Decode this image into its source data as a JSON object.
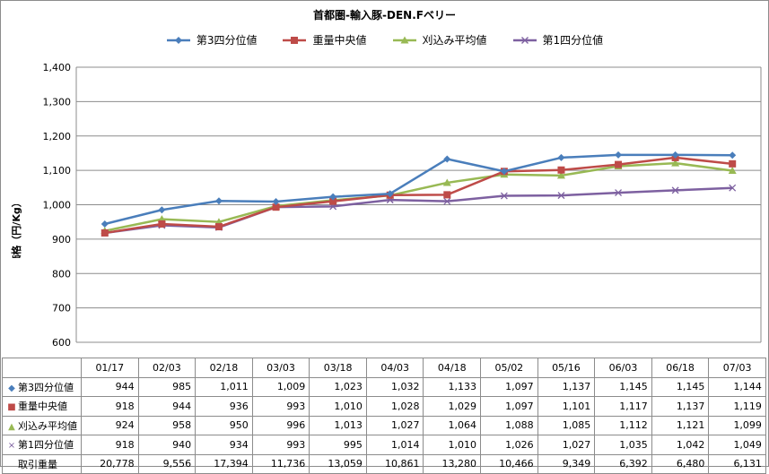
{
  "chart_data": {
    "type": "line",
    "title": "首都圏-輸入豚-DEN.Fベリー",
    "ylabel": "価格（円/Kg）",
    "ylim": [
      600,
      1400
    ],
    "yticks": [
      "600",
      "700",
      "800",
      "900",
      "1,000",
      "1,100",
      "1,200",
      "1,300",
      "1,400"
    ],
    "yticks_values": [
      600,
      700,
      800,
      900,
      1000,
      1100,
      1200,
      1300,
      1400
    ],
    "grid": true,
    "legend_position": "top",
    "categories": [
      "01/17",
      "02/03",
      "02/18",
      "03/03",
      "03/18",
      "04/03",
      "04/18",
      "05/02",
      "05/16",
      "06/03",
      "06/18",
      "07/03"
    ],
    "series": [
      {
        "name": "第3四分位値",
        "color": "#4a7ebb",
        "marker": "diamond",
        "marker_glyph": "◆",
        "values": [
          944,
          985,
          1011,
          1009,
          1023,
          1032,
          1133,
          1097,
          1137,
          1145,
          1145,
          1144
        ]
      },
      {
        "name": "重量中央値",
        "color": "#be4b48",
        "marker": "square",
        "marker_glyph": "■",
        "values": [
          918,
          944,
          936,
          993,
          1010,
          1028,
          1029,
          1097,
          1101,
          1117,
          1137,
          1119
        ]
      },
      {
        "name": "刈込み平均値",
        "color": "#98b954",
        "marker": "triangle",
        "marker_glyph": "▲",
        "values": [
          924,
          958,
          950,
          996,
          1013,
          1027,
          1064,
          1088,
          1085,
          1112,
          1121,
          1099
        ]
      },
      {
        "name": "第1四分位値",
        "color": "#7d60a0",
        "marker": "x",
        "marker_glyph": "×",
        "values": [
          918,
          940,
          934,
          993,
          995,
          1014,
          1010,
          1026,
          1027,
          1035,
          1042,
          1049
        ]
      }
    ],
    "table": {
      "rows": [
        {
          "label": "第3四分位値",
          "series_index": 0,
          "cells": [
            "944",
            "985",
            "1,011",
            "1,009",
            "1,023",
            "1,032",
            "1,133",
            "1,097",
            "1,137",
            "1,145",
            "1,145",
            "1,144"
          ]
        },
        {
          "label": "重量中央値",
          "series_index": 1,
          "cells": [
            "918",
            "944",
            "936",
            "993",
            "1,010",
            "1,028",
            "1,029",
            "1,097",
            "1,101",
            "1,117",
            "1,137",
            "1,119"
          ]
        },
        {
          "label": "刈込み平均値",
          "series_index": 2,
          "cells": [
            "924",
            "958",
            "950",
            "996",
            "1,013",
            "1,027",
            "1,064",
            "1,088",
            "1,085",
            "1,112",
            "1,121",
            "1,099"
          ]
        },
        {
          "label": "第1四分位値",
          "series_index": 3,
          "cells": [
            "918",
            "940",
            "934",
            "993",
            "995",
            "1,014",
            "1,010",
            "1,026",
            "1,027",
            "1,035",
            "1,042",
            "1,049"
          ]
        },
        {
          "label": "取引重量",
          "series_index": null,
          "cells": [
            "20,778",
            "9,556",
            "17,394",
            "11,736",
            "13,059",
            "10,861",
            "13,280",
            "10,466",
            "9,349",
            "6,392",
            "6,480",
            "6,131"
          ]
        }
      ]
    }
  }
}
